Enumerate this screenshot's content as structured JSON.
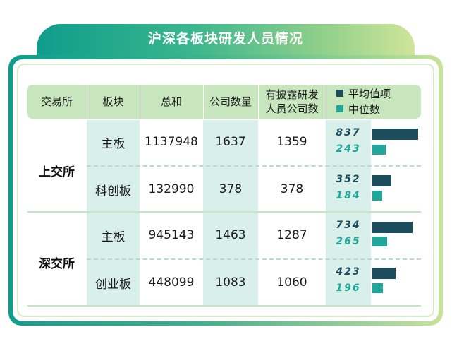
{
  "title": "沪深各板块研发人员情况",
  "colors": {
    "avg": "#1b4d5c",
    "median": "#1fa89a",
    "header": "#c7e6bd",
    "accent": "#d9efe9"
  },
  "headers": {
    "exchange": "交易所",
    "board": "板块",
    "total": "总和",
    "company_count": "公司数量",
    "disclosed_line1": "有披露研发",
    "disclosed_line2": "人员公司数"
  },
  "legend": {
    "avg": "平均值项",
    "median": "中位数"
  },
  "exchanges": [
    {
      "name": "上交所"
    },
    {
      "name": "深交所"
    }
  ],
  "rows": [
    {
      "board": "主板",
      "total": "1137948",
      "company_count": "1637",
      "disclosed": "1359",
      "avg_label": "837",
      "median_label": "243"
    },
    {
      "board": "科创板",
      "total": "132990",
      "company_count": "378",
      "disclosed": "378",
      "avg_label": "352",
      "median_label": "184"
    },
    {
      "board": "主板",
      "total": "945143",
      "company_count": "1463",
      "disclosed": "1287",
      "avg_label": "734",
      "median_label": "265"
    },
    {
      "board": "创业板",
      "total": "448099",
      "company_count": "1083",
      "disclosed": "1060",
      "avg_label": "423",
      "median_label": "196"
    }
  ],
  "chart_data": {
    "type": "bar",
    "categories": [
      "上交所 主板",
      "上交所 科创板",
      "深交所 主板",
      "深交所 创业板"
    ],
    "series": [
      {
        "name": "平均值项",
        "values": [
          837,
          352,
          734,
          423
        ]
      },
      {
        "name": "中位数",
        "values": [
          243,
          184,
          265,
          196
        ]
      }
    ],
    "table": {
      "columns": [
        "交易所",
        "板块",
        "总和",
        "公司数量",
        "有披露研发人员公司数"
      ],
      "rows": [
        [
          "上交所",
          "主板",
          1137948,
          1637,
          1359
        ],
        [
          "上交所",
          "科创板",
          132990,
          378,
          378
        ],
        [
          "深交所",
          "主板",
          945143,
          1463,
          1287
        ],
        [
          "深交所",
          "创业板",
          448099,
          1083,
          1060
        ]
      ]
    },
    "title": "沪深各板块研发人员情况"
  }
}
